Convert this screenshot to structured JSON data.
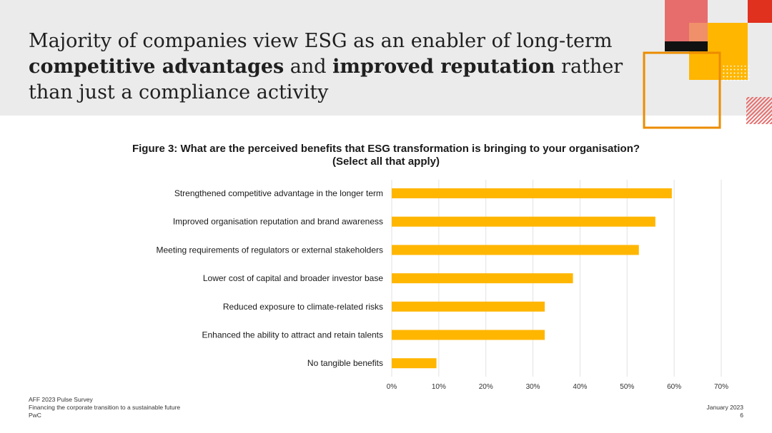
{
  "slide": {
    "headline": {
      "line1": "Majority of companies view ESG as an enabler of long-term",
      "line2_bold1": "competitive advantages",
      "line2_mid": " and ",
      "line2_bold2": "improved reputation",
      "line2_end": " rather",
      "line3": "than just a compliance activity"
    },
    "colors": {
      "bar": "#FFB600",
      "header_bg": "#EBEBEB",
      "orange": "#EB8C00",
      "red": "#E0301E",
      "pink": "#E76D6D"
    }
  },
  "chart_data": {
    "type": "bar",
    "orientation": "horizontal",
    "title_line1": "Figure 3: What are the perceived benefits that ESG transformation is bringing to your organisation?",
    "title_line2": "(Select all that apply)",
    "categories": [
      "Strengthened competitive advantage in the longer term",
      "Improved organisation reputation and brand awareness",
      "Meeting requirements of regulators or external stakeholders",
      "Lower cost of capital and broader investor base",
      "Reduced exposure to climate-related risks",
      "Enhanced the ability to attract and retain talents",
      "No tangible benefits"
    ],
    "values": [
      59.5,
      56,
      52.5,
      38.5,
      32.5,
      32.5,
      9.5
    ],
    "xlim": [
      0,
      70
    ],
    "xticks": [
      0,
      10,
      20,
      30,
      40,
      50,
      60,
      70
    ],
    "tick_labels": [
      "0%",
      "10%",
      "20%",
      "30%",
      "40%",
      "50%",
      "60%",
      "70%"
    ],
    "grid": "vertical"
  },
  "footer": {
    "source_line1": "AFF 2023 Pulse Survey",
    "source_line2": "Financing the corporate transition to a sustainable future",
    "company": "PwC",
    "date": "January 2023",
    "page_number": "6"
  }
}
